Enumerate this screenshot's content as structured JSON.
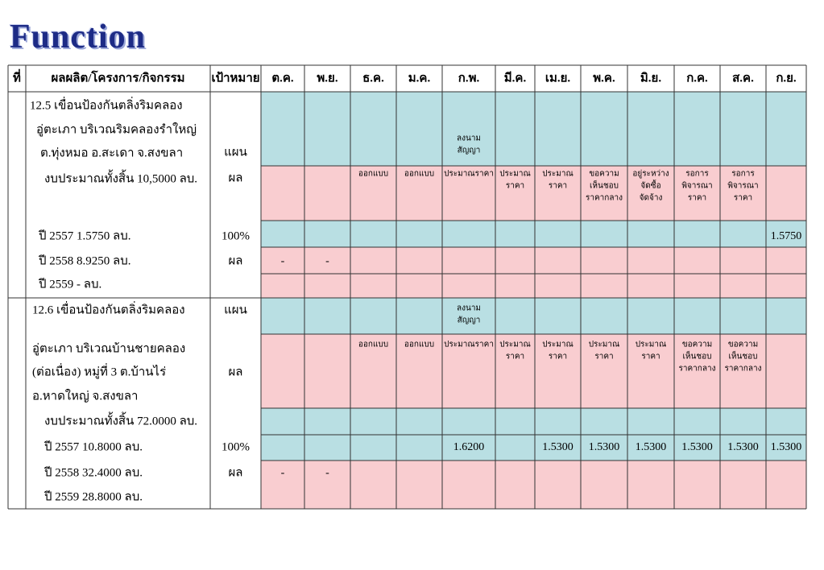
{
  "header": {
    "title": "Function"
  },
  "table": {
    "columns": [
      "ที่",
      "ผลผลิต/โครงการ/กิจกรรม",
      "เป้าหมาย",
      "ต.ค.",
      "พ.ย.",
      "ธ.ค.",
      "ม.ค.",
      "ก.พ.",
      "มี.ค.",
      "เม.ย.",
      "พ.ค.",
      "มิ.ย.",
      "ก.ค.",
      "ส.ค.",
      "ก.ย."
    ],
    "sections": [
      {
        "lines": [
          "12.5 เขื่อนป้องกันตลิ่งริมคลอง",
          "อู่ตะเภา บริเวณริมคลองรำใหญ่",
          "ต.ทุ่งหมอ  อ.สะเดา จ.สงขลา",
          "งบประมาณทั้งสิ้น 10,5000 ลบ.",
          "ปี 2557    1.5750      ลบ.",
          "ปี 2558    8.9250      ลบ.",
          "ปี 2559       -           ลบ."
        ],
        "rows": [
          {
            "target": "แผน",
            "cells": [
              null,
              null,
              null,
              null,
              [
                "ลงนาม",
                "สัญญา"
              ],
              null,
              null,
              null,
              null,
              null,
              null,
              null
            ]
          },
          {
            "target": "ผล",
            "cells": [
              null,
              null,
              [
                "ออกแบบ"
              ],
              [
                "ออกแบบ"
              ],
              [
                "ประมาณราคา"
              ],
              [
                "ประมาณ",
                "ราคา"
              ],
              [
                "ประมาณ",
                "ราคา"
              ],
              [
                "ขอความ",
                "เห็นชอบ",
                "ราคากลาง"
              ],
              [
                "อยู่ระหว่าง",
                "จัดซื้อ",
                "จัดจ้าง"
              ],
              [
                "รอการ",
                "พิจารณา",
                "ราคา"
              ],
              [
                "รอการ",
                "พิจารณา",
                "ราคา"
              ],
              null
            ]
          },
          {
            "target": "100%",
            "cells": [
              null,
              null,
              null,
              null,
              null,
              null,
              null,
              null,
              null,
              null,
              null,
              [
                "1.5750"
              ]
            ]
          },
          {
            "target": "ผล",
            "cells": [
              [
                "-"
              ],
              [
                "-"
              ],
              null,
              null,
              null,
              null,
              null,
              null,
              null,
              null,
              null,
              null
            ]
          }
        ]
      },
      {
        "lines": [
          "12.6 เขื่อนป้องกันตลิ่งริมคลอง",
          "อู่ตะเภา  บริเวณบ้านชายคลอง",
          "(ต่อเนื่อง) หมู่ที่ 3  ต.บ้านไร่",
          "อ.หาดใหญ่  จ.สงขลา",
          "งบประมาณทั้งสิ้น 72.0000 ลบ.",
          "ปี 2557   10.8000    ลบ.",
          "ปี 2558   32.4000    ลบ.",
          "ปี 2559   28.8000    ลบ."
        ],
        "rows": [
          {
            "target": "แผน",
            "cells": [
              null,
              null,
              null,
              null,
              [
                "ลงนาม",
                "สัญญา"
              ],
              null,
              null,
              null,
              null,
              null,
              null,
              null
            ]
          },
          {
            "target": "ผล",
            "cells": [
              null,
              null,
              [
                "ออกแบบ"
              ],
              [
                "ออกแบบ"
              ],
              [
                "ประมาณราคา"
              ],
              [
                "ประมาณ",
                "ราคา"
              ],
              [
                "ประมาณ",
                "ราคา"
              ],
              [
                "ประมาณ",
                "ราคา"
              ],
              [
                "ประมาณ",
                "ราคา"
              ],
              [
                "ขอความ",
                "เห็นชอบ",
                "ราคากลาง"
              ],
              [
                "ขอความ",
                "เห็นชอบ",
                "ราคากลาง"
              ],
              null
            ]
          },
          {
            "target": "100%",
            "cells": [
              null,
              null,
              null,
              null,
              [
                "1.6200"
              ],
              null,
              [
                "1.5300"
              ],
              [
                "1.5300"
              ],
              [
                "1.5300"
              ],
              [
                "1.5300"
              ],
              [
                "1.5300"
              ],
              [
                "1.5300"
              ]
            ]
          },
          {
            "target": "ผล",
            "cells": [
              [
                "-"
              ],
              [
                "-"
              ],
              null,
              null,
              null,
              null,
              null,
              null,
              null,
              null,
              null,
              null
            ]
          }
        ]
      }
    ]
  }
}
